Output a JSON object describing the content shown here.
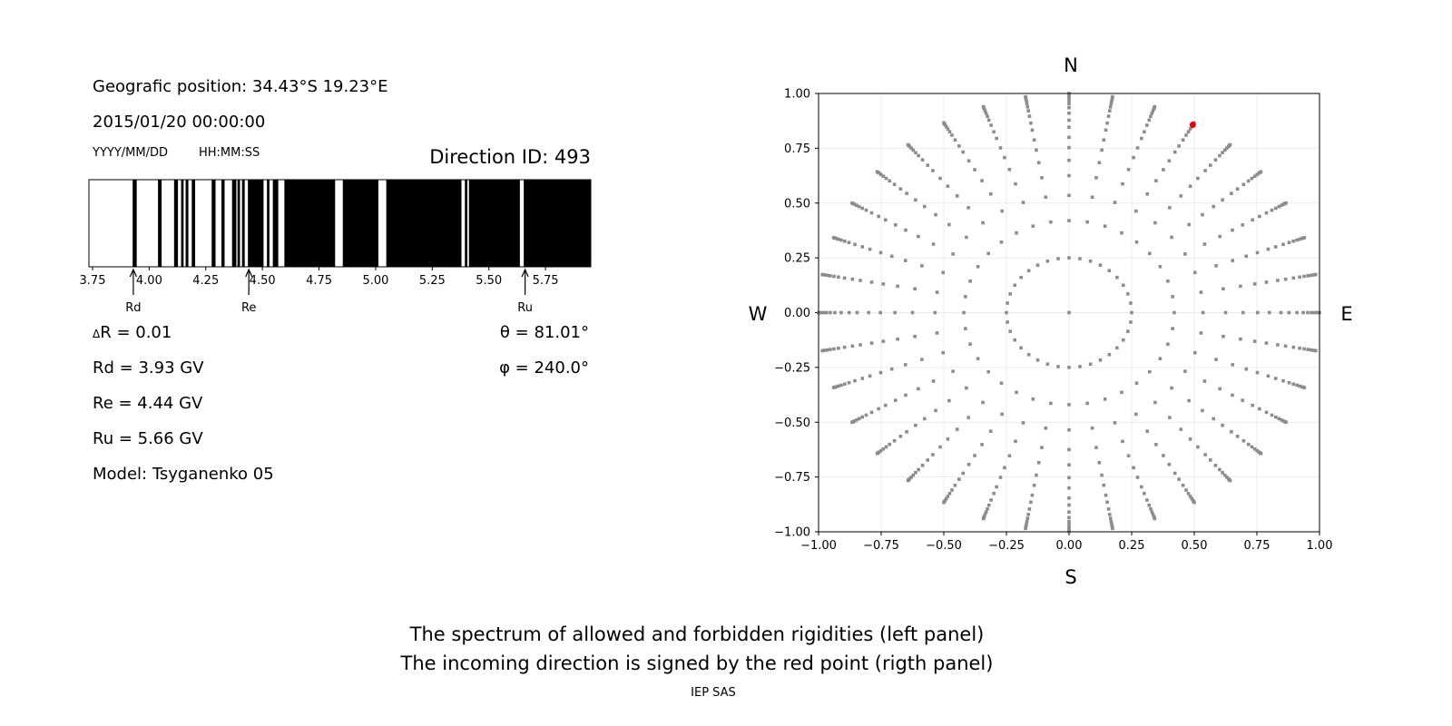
{
  "left_panel": {
    "position": "Geografic position: 34.43°S 19.23°E",
    "datetime": "2015/01/20 00:00:00",
    "date_format": "YYYY/MM/DD",
    "time_format": "HH:MM:SS",
    "direction_id": "Direction ID: 493",
    "delta_r": "R = 0.01",
    "delta_symbol": "Δ",
    "rd": "Rd = 3.93 GV",
    "re": "Re = 4.44 GV",
    "ru": "Ru = 5.66 GV",
    "model": "Model: Tsyganenko 05",
    "theta": "θ = 81.01°",
    "phi": "φ = 240.0°"
  },
  "captions": {
    "line1": "The spectrum of allowed and forbidden rigidities (left panel)",
    "line2": "The incoming direction is signed by the red point (rigth panel)",
    "credit": "IEP SAS"
  },
  "chart_data": [
    {
      "type": "bar",
      "xlim": [
        3.734,
        5.95
      ],
      "xticks": [
        "3.75",
        "4.00",
        "4.25",
        "4.50",
        "4.75",
        "5.00",
        "5.25",
        "5.50",
        "5.75"
      ],
      "colors": {
        "black_band": "#000000",
        "white_band": "#ffffff"
      },
      "black_intervals": [
        [
          3.927,
          3.945
        ],
        [
          4.039,
          4.055
        ],
        [
          4.11,
          4.127
        ],
        [
          4.141,
          4.152
        ],
        [
          4.161,
          4.173
        ],
        [
          4.188,
          4.203
        ],
        [
          4.276,
          4.293
        ],
        [
          4.319,
          4.333
        ],
        [
          4.366,
          4.385
        ],
        [
          4.39,
          4.401
        ],
        [
          4.41,
          4.422
        ],
        [
          4.436,
          4.505
        ],
        [
          4.52,
          4.531
        ],
        [
          4.546,
          4.57
        ],
        [
          4.597,
          4.821
        ],
        [
          4.855,
          5.012
        ],
        [
          5.047,
          5.379
        ],
        [
          5.394,
          5.405
        ],
        [
          5.412,
          5.637
        ],
        [
          5.654,
          5.95
        ]
      ],
      "markers": [
        {
          "label": "Rd",
          "value": 3.93
        },
        {
          "label": "Re",
          "value": 4.44
        },
        {
          "label": "Ru",
          "value": 5.66
        }
      ]
    },
    {
      "type": "scatter",
      "xlim": [
        -1,
        1
      ],
      "ylim": [
        -1,
        1
      ],
      "xticks": [
        "−1.00",
        "−0.75",
        "−0.50",
        "−0.25",
        "0.00",
        "0.25",
        "0.50",
        "0.75",
        "1.00"
      ],
      "yticks": [
        "−1.00",
        "−0.75",
        "−0.50",
        "−0.25",
        "0.00",
        "0.25",
        "0.50",
        "0.75",
        "1.00"
      ],
      "grid": true,
      "compass": {
        "top": "N",
        "bottom": "S",
        "left": "W",
        "right": "E"
      },
      "point_color": "#8c8c8c",
      "highlight_color": "#e8000b",
      "center_point": [
        0,
        0
      ],
      "ray_azimuth_step_deg": 10,
      "ray_radii": [
        0.25,
        0.42,
        0.535,
        0.625,
        0.695,
        0.753,
        0.8,
        0.846,
        0.878,
        0.91,
        0.935,
        0.953,
        0.968,
        0.98,
        0.99,
        0.996,
        1.0
      ],
      "highlight_point": [
        0.494,
        0.857
      ]
    }
  ]
}
